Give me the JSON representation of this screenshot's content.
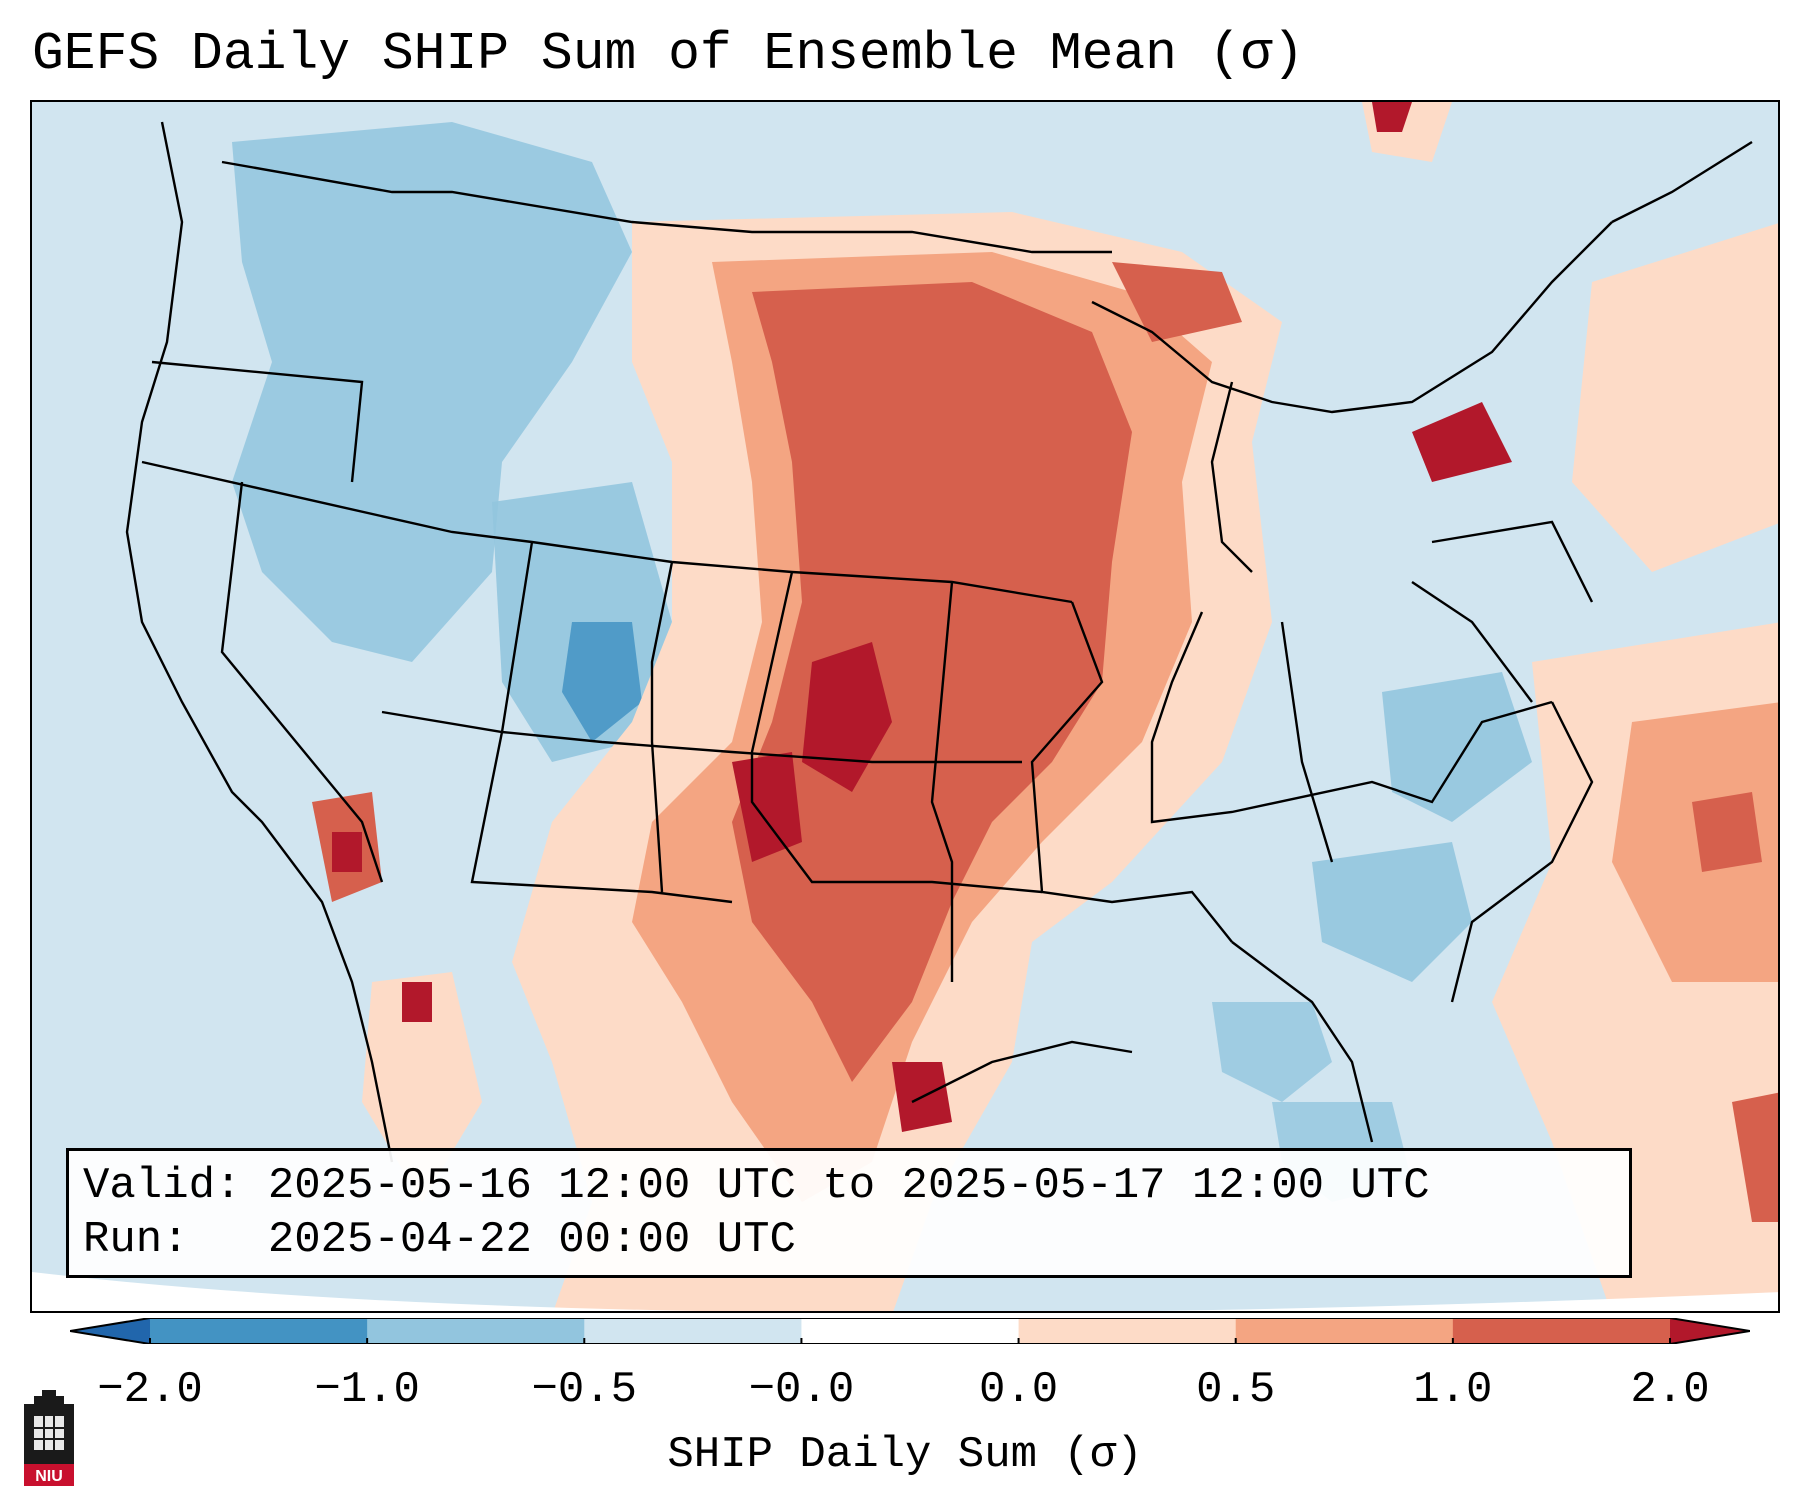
{
  "title": "GEFS Daily SHIP Sum of Ensemble Mean (σ)",
  "info": {
    "valid_line": "Valid: 2025-05-16 12:00 UTC to 2025-05-17 12:00 UTC",
    "run_line": "Run:   2025-04-22 00:00 UTC"
  },
  "colorbar": {
    "label": "SHIP Daily Sum (σ)",
    "ticks": [
      "−2.0",
      "−1.0",
      "−0.5",
      "−0.0",
      "0.0",
      "0.5",
      "1.0",
      "2.0"
    ],
    "colors": [
      "#2166ac",
      "#4393c3",
      "#92c5de",
      "#d1e5f0",
      "#ffffff",
      "#fddbc7",
      "#f4a582",
      "#d6604d",
      "#b2182b"
    ],
    "extend": "both"
  },
  "map": {
    "region": "Contiguous United States",
    "ocean_color": "#d1e5f0",
    "boundary_color": "#000000"
  },
  "logo": {
    "text": "NIU"
  }
}
